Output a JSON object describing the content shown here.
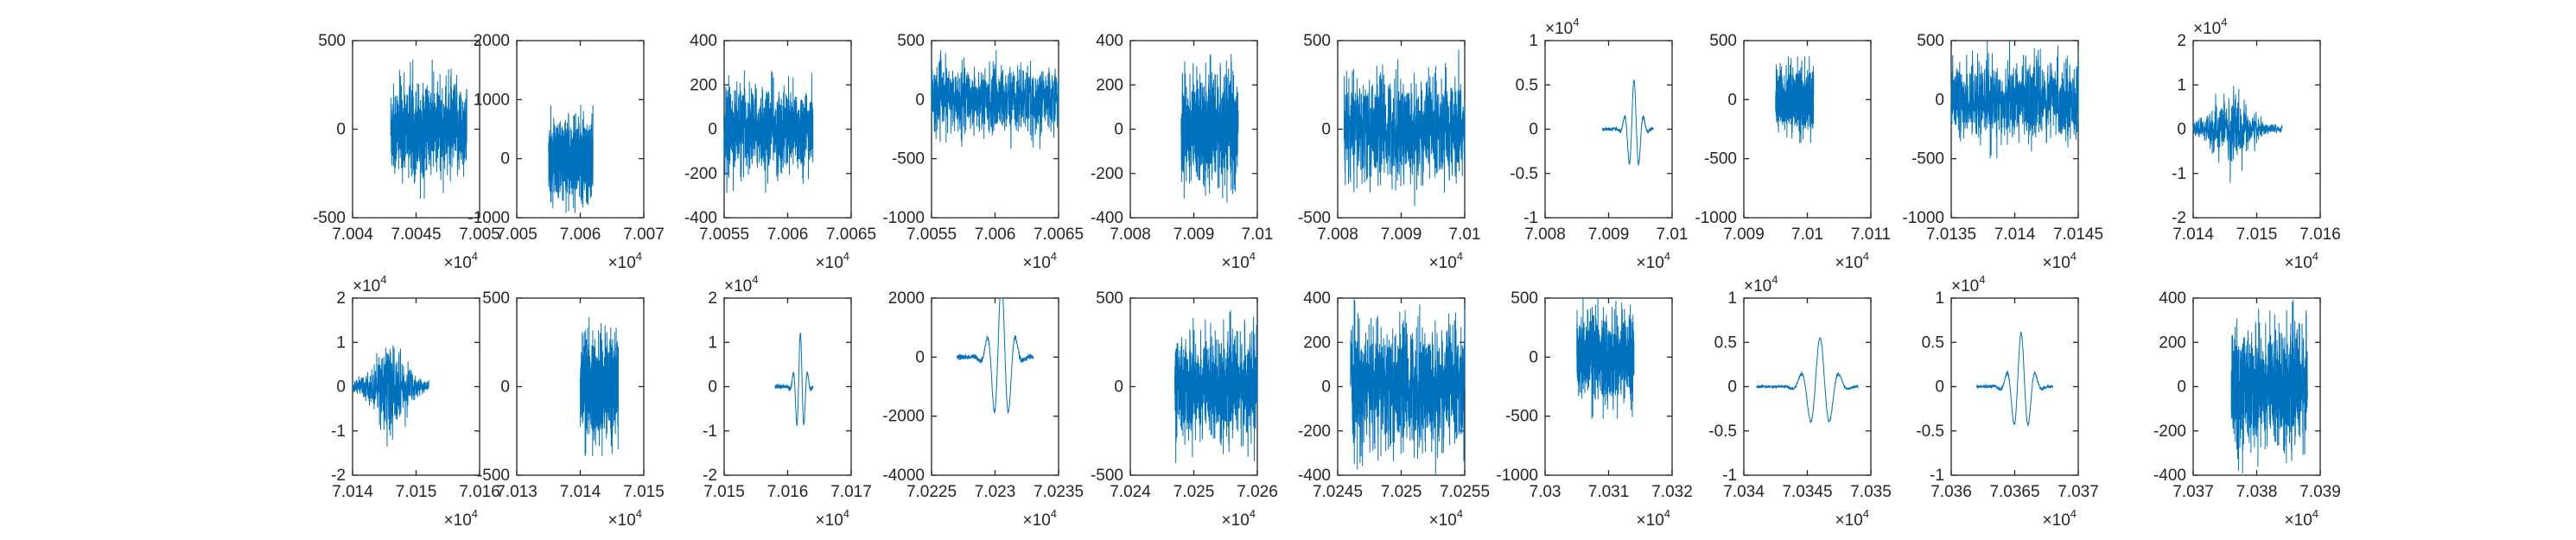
{
  "style": {
    "trace_color": "#0072BD",
    "axis_color": "#262626"
  },
  "chart_data": [
    {
      "type": "line",
      "ylim": [
        -500,
        500
      ],
      "yticks": [
        "-500",
        "0",
        "500"
      ],
      "xlim": [
        7.004,
        7.005
      ],
      "xticks": [
        "7.004",
        "7.0045",
        "7.005"
      ],
      "x_multiplier": "×10",
      "x_exp": "4",
      "signal": {
        "x_start": 7.0043,
        "x_end": 7.0049,
        "amplitude": 300,
        "kind": "noise"
      }
    },
    {
      "type": "line",
      "ylim": [
        -1000,
        2000
      ],
      "yticks": [
        "-1000",
        "0",
        "1000",
        "2000"
      ],
      "xlim": [
        7.005,
        7.007
      ],
      "xticks": [
        "7.005",
        "7.006",
        "7.007"
      ],
      "x_multiplier": "×10",
      "x_exp": "4",
      "signal": {
        "x_start": 7.0055,
        "x_end": 7.0062,
        "amplitude": 700,
        "kind": "noise"
      }
    },
    {
      "type": "line",
      "ylim": [
        -400,
        400
      ],
      "yticks": [
        "-400",
        "-200",
        "0",
        "200",
        "400"
      ],
      "xlim": [
        7.0055,
        7.0065
      ],
      "xticks": [
        "7.0055",
        "7.006",
        "7.0065"
      ],
      "x_multiplier": "×10",
      "x_exp": "4",
      "signal": {
        "x_start": 7.0055,
        "x_end": 7.0062,
        "amplitude": 220,
        "kind": "noise"
      }
    },
    {
      "type": "line",
      "ylim": [
        -1000,
        500
      ],
      "yticks": [
        "-1000",
        "-500",
        "0",
        "500"
      ],
      "xlim": [
        7.0055,
        7.0065
      ],
      "xticks": [
        "7.0055",
        "7.006",
        "7.0065"
      ],
      "x_multiplier": "×10",
      "x_exp": "4",
      "signal": {
        "x_start": 7.0055,
        "x_end": 7.0065,
        "amplitude": 320,
        "kind": "noise"
      }
    },
    {
      "type": "line",
      "ylim": [
        -400,
        400
      ],
      "yticks": [
        "-400",
        "-200",
        "0",
        "200",
        "400"
      ],
      "xlim": [
        7.008,
        7.01
      ],
      "xticks": [
        "7.008",
        "7.009",
        "7.01"
      ],
      "x_multiplier": "×10",
      "x_exp": "4",
      "signal": {
        "x_start": 7.0088,
        "x_end": 7.0097,
        "amplitude": 260,
        "kind": "noise"
      }
    },
    {
      "type": "line",
      "ylim": [
        -500,
        500
      ],
      "yticks": [
        "-500",
        "0",
        "500"
      ],
      "xlim": [
        7.008,
        7.01
      ],
      "xticks": [
        "7.008",
        "7.009",
        "7.01"
      ],
      "x_multiplier": "×10",
      "x_exp": "4",
      "signal": {
        "x_start": 7.0081,
        "x_end": 7.01,
        "amplitude": 350,
        "kind": "noise"
      }
    },
    {
      "type": "line",
      "ylim": [
        -1,
        1
      ],
      "yticks": [
        "-1",
        "-0.5",
        "0",
        "0.5",
        "1"
      ],
      "y_multiplier": "×10",
      "y_exp": "4",
      "xlim": [
        7.008,
        7.01
      ],
      "xticks": [
        "7.008",
        "7.009",
        "7.01"
      ],
      "x_multiplier": "×10",
      "x_exp": "4",
      "signal": {
        "x_start": 7.0089,
        "x_end": 7.0097,
        "amplitude": 0.55,
        "kind": "wavelet",
        "center": 7.0094
      }
    },
    {
      "type": "line",
      "ylim": [
        -1000,
        500
      ],
      "yticks": [
        "-1000",
        "-500",
        "0",
        "500"
      ],
      "xlim": [
        7.009,
        7.011
      ],
      "xticks": [
        "7.009",
        "7.01",
        "7.011"
      ],
      "x_multiplier": "×10",
      "x_exp": "4",
      "signal": {
        "x_start": 7.0095,
        "x_end": 7.0101,
        "amplitude": 280,
        "kind": "noise"
      }
    },
    {
      "type": "line",
      "ylim": [
        -1000,
        500
      ],
      "yticks": [
        "-1000",
        "-500",
        "0",
        "500"
      ],
      "xlim": [
        7.0135,
        7.0145
      ],
      "xticks": [
        "7.0135",
        "7.014",
        "7.0145"
      ],
      "x_multiplier": "×10",
      "x_exp": "4",
      "signal": {
        "x_start": 7.0135,
        "x_end": 7.0145,
        "amplitude": 380,
        "kind": "noise"
      }
    },
    {
      "type": "line",
      "ylim": [
        -2,
        2
      ],
      "yticks": [
        "-2",
        "-1",
        "0",
        "1",
        "2"
      ],
      "y_multiplier": "×10",
      "y_exp": "4",
      "xlim": [
        7.014,
        7.016
      ],
      "xticks": [
        "7.014",
        "7.015",
        "7.016"
      ],
      "x_multiplier": "×10",
      "x_exp": "4",
      "signal": {
        "x_start": 7.014,
        "x_end": 7.0154,
        "amplitude": 0.9,
        "kind": "burst",
        "center": 7.0146
      }
    },
    {
      "type": "line",
      "ylim": [
        -2,
        2
      ],
      "yticks": [
        "-2",
        "-1",
        "0",
        "1",
        "2"
      ],
      "y_multiplier": "×10",
      "y_exp": "4",
      "xlim": [
        7.014,
        7.016
      ],
      "xticks": [
        "7.014",
        "7.015",
        "7.016"
      ],
      "x_multiplier": "×10",
      "x_exp": "4",
      "signal": {
        "x_start": 7.014,
        "x_end": 7.0152,
        "amplitude": 1.1,
        "kind": "burst",
        "center": 7.0146
      }
    },
    {
      "type": "line",
      "ylim": [
        -500,
        500
      ],
      "yticks": [
        "-500",
        "0",
        "500"
      ],
      "xlim": [
        7.013,
        7.015
      ],
      "xticks": [
        "7.013",
        "7.014",
        "7.015"
      ],
      "x_multiplier": "×10",
      "x_exp": "4",
      "signal": {
        "x_start": 7.014,
        "x_end": 7.0146,
        "amplitude": 300,
        "kind": "noise"
      }
    },
    {
      "type": "line",
      "ylim": [
        -2,
        2
      ],
      "yticks": [
        "-2",
        "-1",
        "0",
        "1",
        "2"
      ],
      "y_multiplier": "×10",
      "y_exp": "4",
      "xlim": [
        7.015,
        7.017
      ],
      "xticks": [
        "7.015",
        "7.016",
        "7.017"
      ],
      "x_multiplier": "×10",
      "x_exp": "4",
      "signal": {
        "x_start": 7.0158,
        "x_end": 7.0164,
        "amplitude": 1.2,
        "kind": "wavelet",
        "center": 7.0162
      }
    },
    {
      "type": "line",
      "ylim": [
        -4000,
        2000
      ],
      "yticks": [
        "-4000",
        "-2000",
        "0",
        "2000"
      ],
      "xlim": [
        7.0225,
        7.0235
      ],
      "xticks": [
        "7.0225",
        "7.023",
        "7.0235"
      ],
      "x_multiplier": "×10",
      "x_exp": "4",
      "signal": {
        "x_start": 7.0227,
        "x_end": 7.0233,
        "amplitude": 2600,
        "kind": "wavelet",
        "center": 7.02305
      }
    },
    {
      "type": "line",
      "ylim": [
        -500,
        500
      ],
      "yticks": [
        "-500",
        "0",
        "500"
      ],
      "xlim": [
        7.024,
        7.026
      ],
      "xticks": [
        "7.024",
        "7.025",
        "7.026"
      ],
      "x_multiplier": "×10",
      "x_exp": "4",
      "signal": {
        "x_start": 7.0247,
        "x_end": 7.026,
        "amplitude": 330,
        "kind": "noise"
      }
    },
    {
      "type": "line",
      "ylim": [
        -400,
        400
      ],
      "yticks": [
        "-400",
        "-200",
        "0",
        "200",
        "400"
      ],
      "xlim": [
        7.0245,
        7.0255
      ],
      "xticks": [
        "7.0245",
        "7.025",
        "7.0255"
      ],
      "x_multiplier": "×10",
      "x_exp": "4",
      "signal": {
        "x_start": 7.0246,
        "x_end": 7.0255,
        "amplitude": 330,
        "kind": "noise"
      }
    },
    {
      "type": "line",
      "ylim": [
        -1000,
        500
      ],
      "yticks": [
        "-1000",
        "-500",
        "0",
        "500"
      ],
      "xlim": [
        7.03,
        7.032
      ],
      "xticks": [
        "7.03",
        "7.031",
        "7.032"
      ],
      "x_multiplier": "×10",
      "x_exp": "4",
      "signal": {
        "x_start": 7.0305,
        "x_end": 7.0314,
        "amplitude": 400,
        "kind": "noise"
      }
    },
    {
      "type": "line",
      "ylim": [
        -1,
        1
      ],
      "yticks": [
        "-1",
        "-0.5",
        "0",
        "0.5",
        "1"
      ],
      "y_multiplier": "×10",
      "y_exp": "4",
      "xlim": [
        7.034,
        7.035
      ],
      "xticks": [
        "7.034",
        "7.0345",
        "7.035"
      ],
      "x_multiplier": "×10",
      "x_exp": "4",
      "signal": {
        "x_start": 7.0341,
        "x_end": 7.0349,
        "amplitude": 0.55,
        "kind": "wavelet",
        "center": 7.0346
      }
    },
    {
      "type": "line",
      "ylim": [
        -1,
        1
      ],
      "yticks": [
        "-1",
        "-0.5",
        "0",
        "0.5",
        "1"
      ],
      "y_multiplier": "×10",
      "y_exp": "4",
      "xlim": [
        7.036,
        7.037
      ],
      "xticks": [
        "7.036",
        "7.0365",
        "7.037"
      ],
      "x_multiplier": "×10",
      "x_exp": "4",
      "signal": {
        "x_start": 7.0362,
        "x_end": 7.0368,
        "amplitude": 0.6,
        "kind": "wavelet",
        "center": 7.03655
      }
    },
    {
      "type": "line",
      "ylim": [
        -400,
        400
      ],
      "yticks": [
        "-400",
        "-200",
        "0",
        "200",
        "400"
      ],
      "xlim": [
        7.037,
        7.039
      ],
      "xticks": [
        "7.037",
        "7.038",
        "7.039"
      ],
      "x_multiplier": "×10",
      "x_exp": "4",
      "signal": {
        "x_start": 7.0376,
        "x_end": 7.0388,
        "amplitude": 300,
        "kind": "noise"
      }
    }
  ]
}
